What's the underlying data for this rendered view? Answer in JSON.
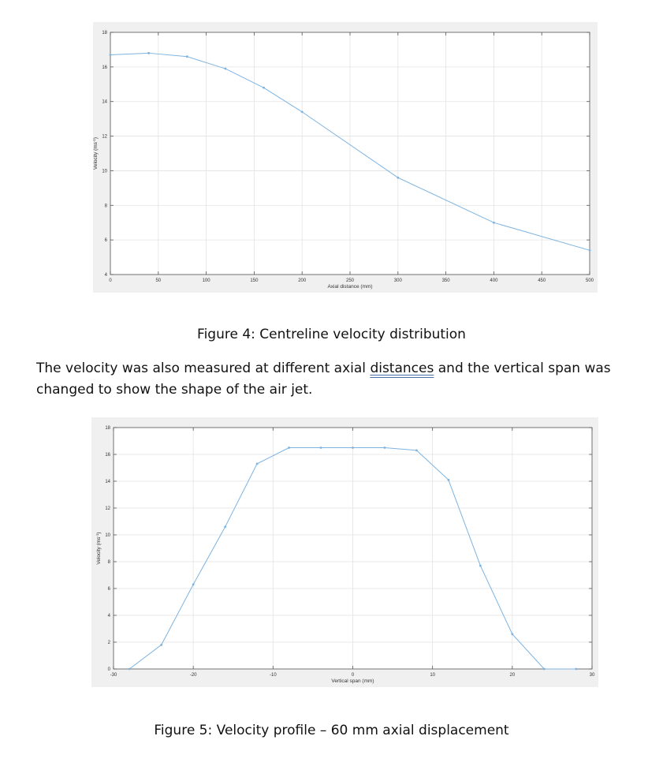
{
  "figures": [
    {
      "caption": "Figure 4: Centreline velocity distribution",
      "chart_data": {
        "type": "line",
        "xlabel": "Axial distance (mm)",
        "ylabel": "Velocity (ms^-1)",
        "xlim": [
          0,
          500
        ],
        "ylim": [
          4,
          18
        ],
        "xticks": [
          0,
          50,
          100,
          150,
          200,
          250,
          300,
          350,
          400,
          450,
          500
        ],
        "yticks": [
          4,
          6,
          8,
          10,
          12,
          14,
          16,
          18
        ],
        "grid": true,
        "line_color": "#7db3e0",
        "series": [
          {
            "x": [
              0,
              40,
              80,
              120,
              160,
              200,
              300,
              400,
              500
            ],
            "y": [
              16.7,
              16.8,
              16.6,
              15.9,
              14.8,
              13.4,
              9.6,
              7.0,
              5.4
            ]
          }
        ]
      }
    },
    {
      "caption": "Figure 5: Velocity profile – 60 mm axial displacement",
      "chart_data": {
        "type": "line",
        "xlabel": "Vertical span (mm)",
        "ylabel": "Velocity (ms^-1)",
        "xlim": [
          -30,
          30
        ],
        "ylim": [
          0,
          18
        ],
        "xticks": [
          -30,
          -20,
          -10,
          0,
          10,
          20,
          30
        ],
        "yticks": [
          0,
          2,
          4,
          6,
          8,
          10,
          12,
          14,
          16,
          18
        ],
        "grid": true,
        "line_color": "#7db3e0",
        "series": [
          {
            "x": [
              -28,
              -24,
              -20,
              -16,
              -12,
              -8,
              -4,
              0,
              4,
              8,
              12,
              16,
              20,
              24,
              28
            ],
            "y": [
              0,
              1.8,
              6.3,
              10.6,
              15.3,
              16.5,
              16.5,
              16.5,
              16.5,
              16.3,
              14.1,
              7.7,
              2.6,
              0,
              0
            ]
          }
        ]
      }
    }
  ],
  "paragraph": {
    "before": "The velocity was also measured at different axial ",
    "underlined": "distances",
    "after": " and the vertical span was changed to show the shape of the air jet."
  }
}
